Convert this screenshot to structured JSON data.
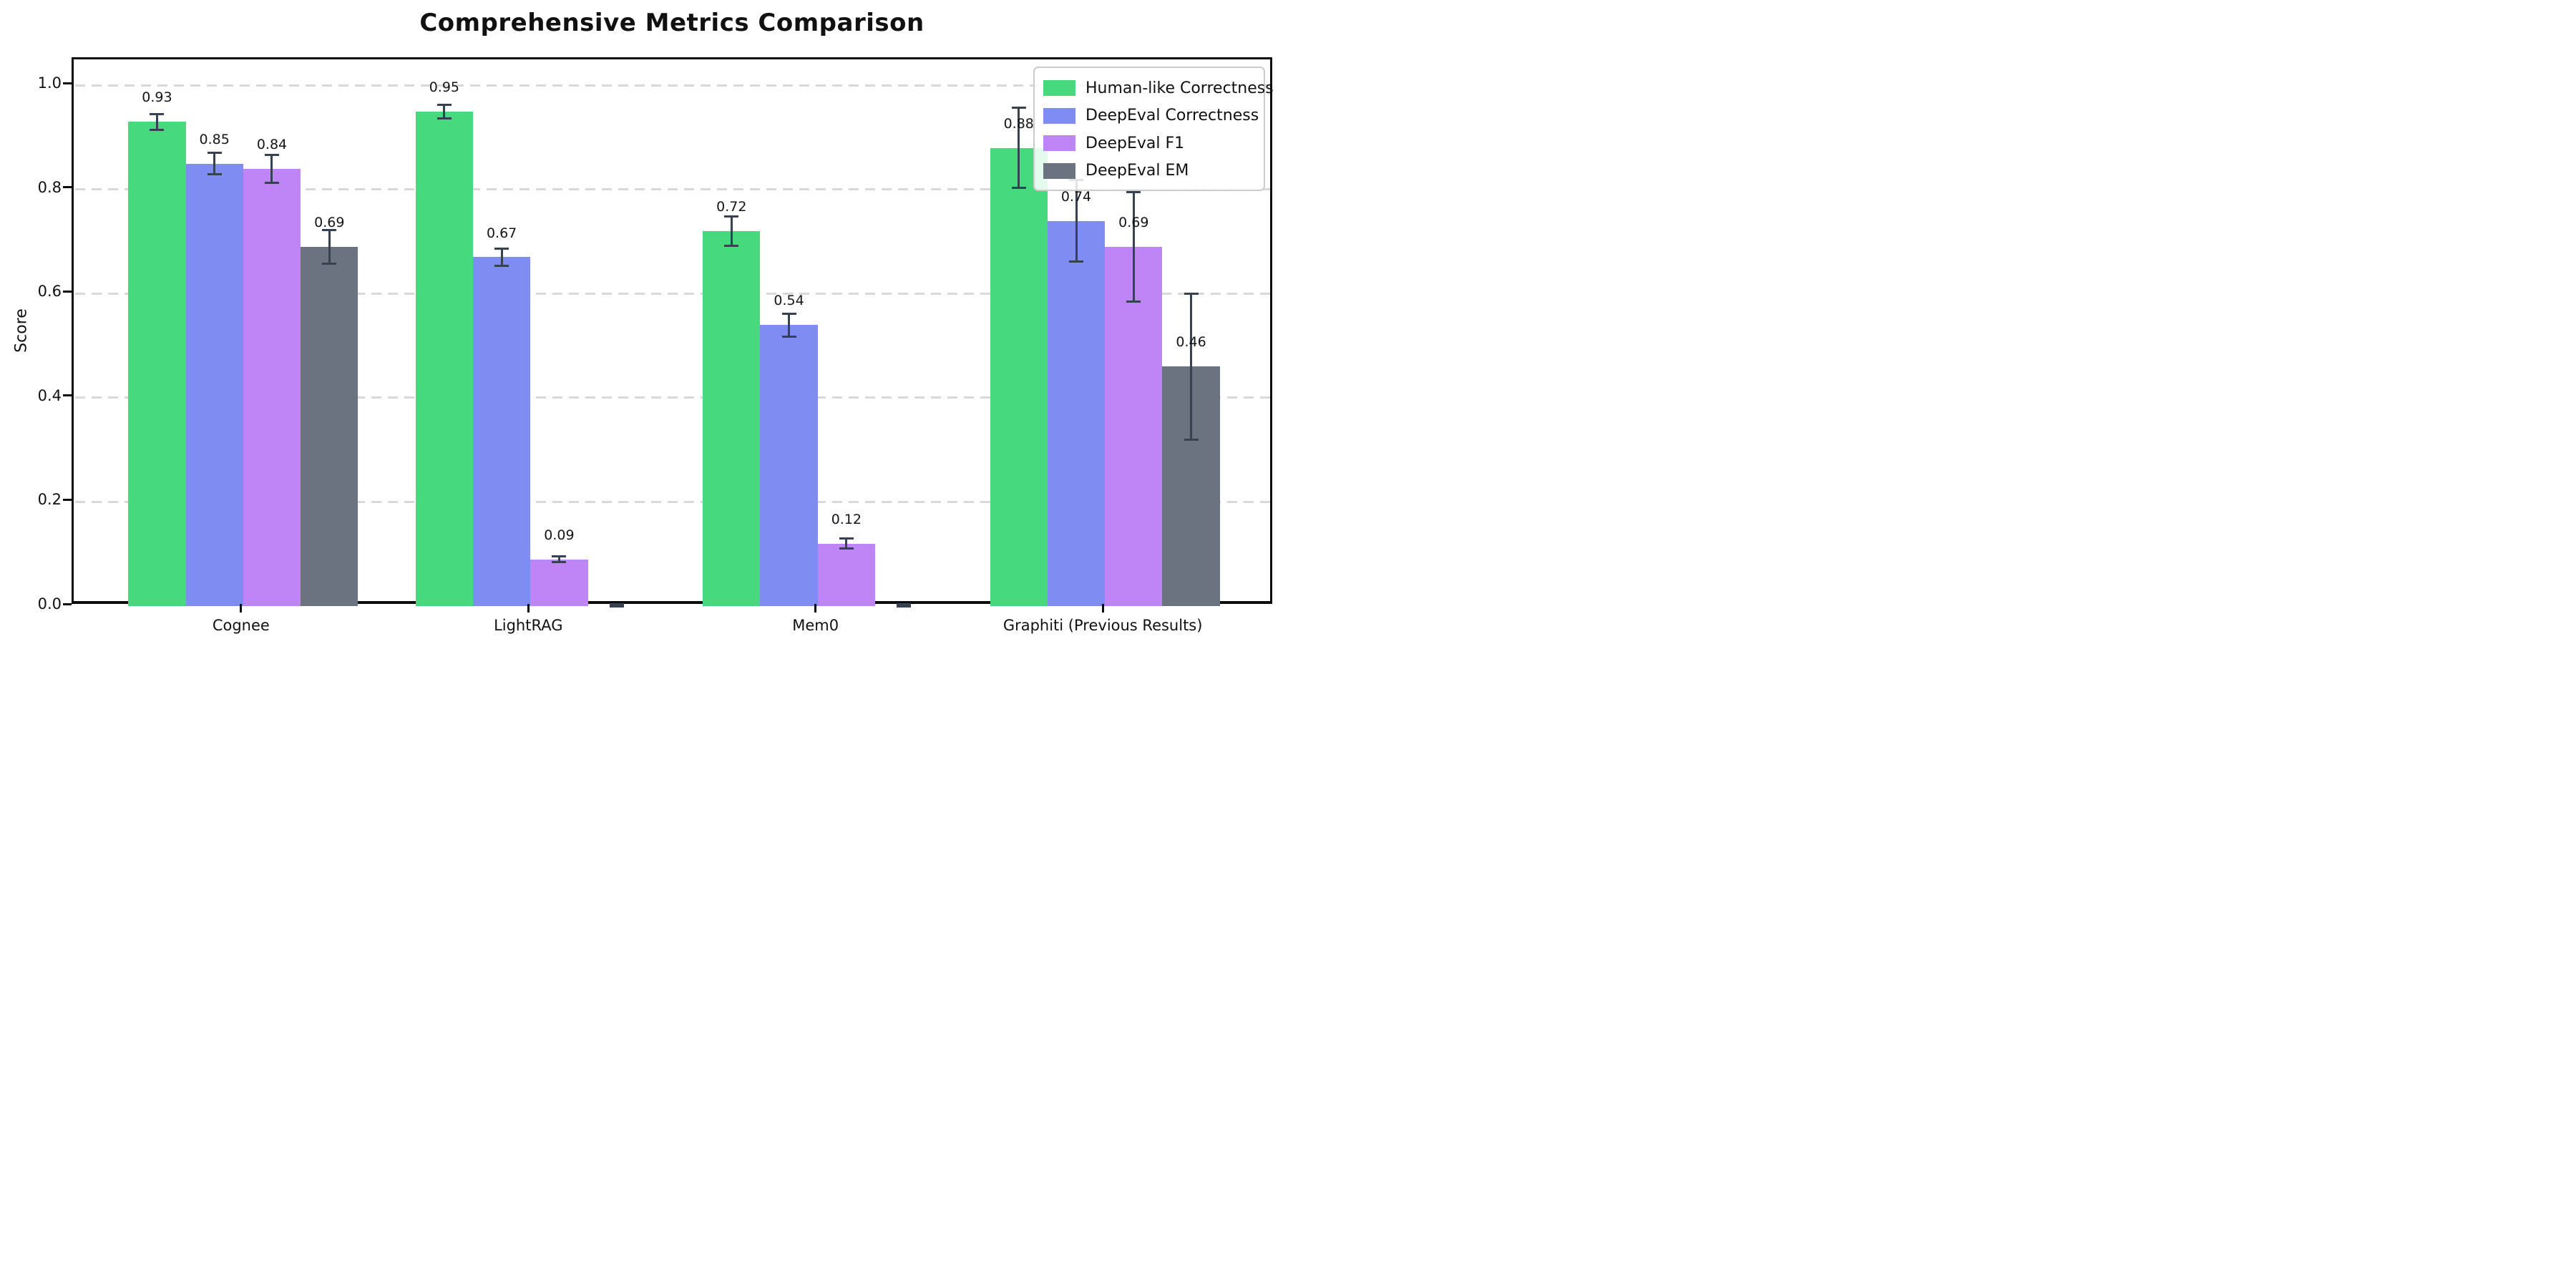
{
  "chart_data": {
    "type": "bar",
    "title": "Comprehensive Metrics Comparison",
    "ylabel": "Score",
    "xlabel": "",
    "categories": [
      "Cognee",
      "LightRAG",
      "Mem0",
      "Graphiti (Previous Results)"
    ],
    "series": [
      {
        "name": "Human-like Correctness",
        "color": "#47d97e",
        "values": [
          0.93,
          0.95,
          0.72,
          0.88
        ],
        "errors": [
          0.015,
          0.013,
          0.028,
          0.077
        ],
        "value_labels": [
          "0.93",
          "0.95",
          "0.72",
          "0.88"
        ]
      },
      {
        "name": "DeepEval Correctness",
        "color": "#7f8cf2",
        "values": [
          0.85,
          0.67,
          0.54,
          0.74
        ],
        "errors": [
          0.02,
          0.016,
          0.022,
          0.078
        ],
        "value_labels": [
          "0.85",
          "0.67",
          "0.54",
          "0.74"
        ]
      },
      {
        "name": "DeepEval F1",
        "color": "#bf85f7",
        "values": [
          0.84,
          0.09,
          0.12,
          0.69
        ],
        "errors": [
          0.027,
          0.006,
          0.01,
          0.105
        ],
        "value_labels": [
          "0.84",
          "0.09",
          "0.12",
          "0.69"
        ]
      },
      {
        "name": "DeepEval EM",
        "color": "#6b7280",
        "values": [
          0.69,
          0.0,
          0.0,
          0.46
        ],
        "errors": [
          0.032,
          0.004,
          0.004,
          0.14
        ],
        "value_labels": [
          "0.69",
          "",
          "",
          "0.46"
        ]
      }
    ],
    "ytick_labels": [
      "0.0",
      "0.2",
      "0.4",
      "0.6",
      "0.8",
      "1.0"
    ],
    "ytick_values": [
      0.0,
      0.2,
      0.4,
      0.6,
      0.8,
      1.0
    ],
    "ylim": [
      0,
      1.05
    ],
    "grid": "horizontal-dashed",
    "legend_position": "upper right",
    "errorbar_color": "#364152"
  }
}
